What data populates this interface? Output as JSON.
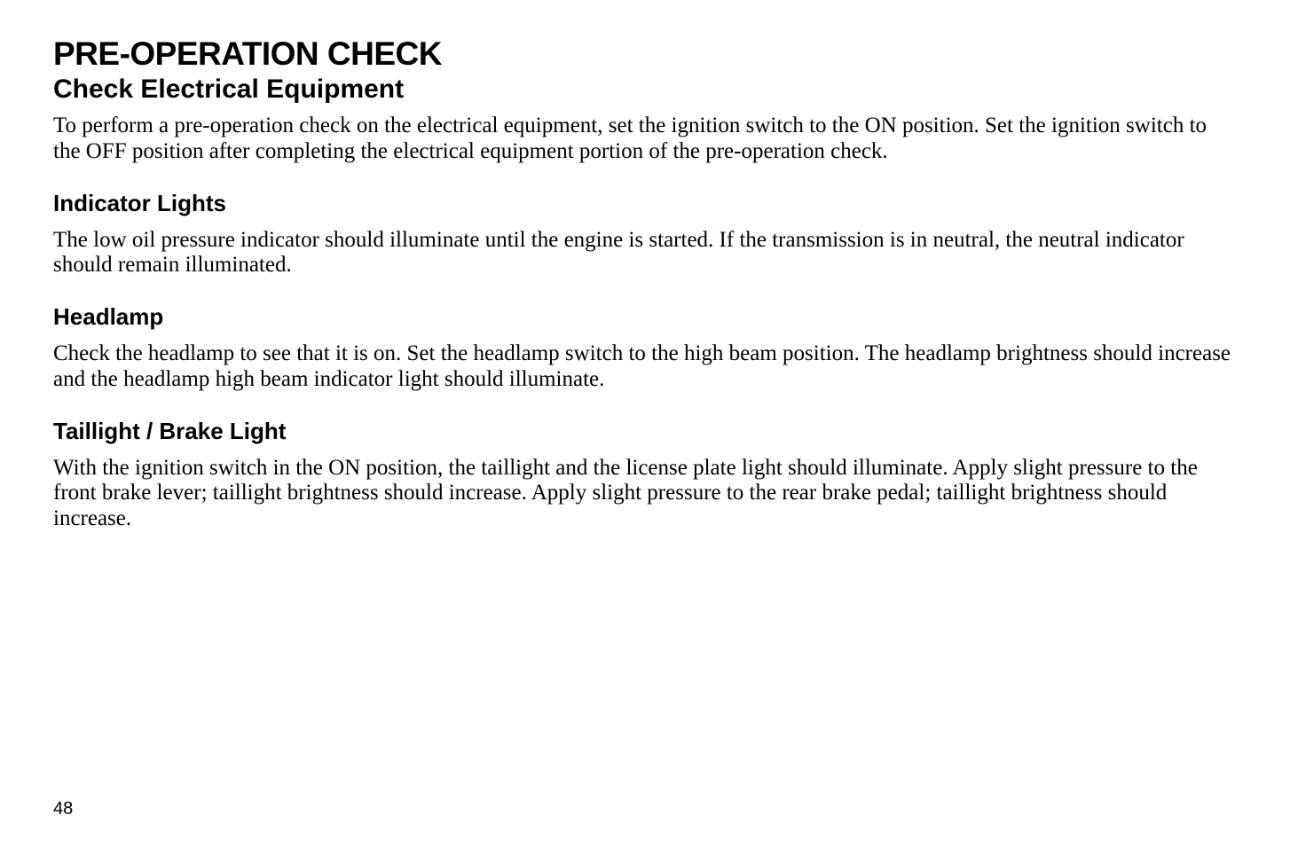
{
  "page": {
    "main_title": "PRE-OPERATION CHECK",
    "subtitle": "Check Electrical Equipment",
    "intro_text": "To perform a pre-operation check on the electrical equipment, set the ignition switch to the ON position. Set the ignition switch to the OFF position after completing the electrical equipment portion of the pre-operation check.",
    "sections": [
      {
        "heading": "Indicator Lights",
        "text": "The low oil pressure indicator should illuminate until the engine is started. If the transmission is in neutral, the neutral indicator should remain illuminated."
      },
      {
        "heading": "Headlamp",
        "text": "Check the headlamp to see that it is on. Set the headlamp switch to the high beam position. The headlamp brightness should increase and the headlamp high beam indicator light should illuminate."
      },
      {
        "heading": "Taillight / Brake Light",
        "text": "With the ignition switch in the ON position, the taillight and the license plate light should illuminate. Apply slight pressure to the front brake lever; taillight brightness should increase. Apply slight pressure to the rear brake pedal; taillight brightness should increase."
      }
    ],
    "page_number": "48"
  },
  "styling": {
    "background_color": "#ffffff",
    "text_color": "#000000",
    "main_title_fontsize": 37,
    "subtitle_fontsize": 30,
    "body_fontsize": 25,
    "section_heading_fontsize": 26,
    "page_number_fontsize": 20,
    "heading_font": "Arial",
    "body_font": "Times New Roman"
  }
}
